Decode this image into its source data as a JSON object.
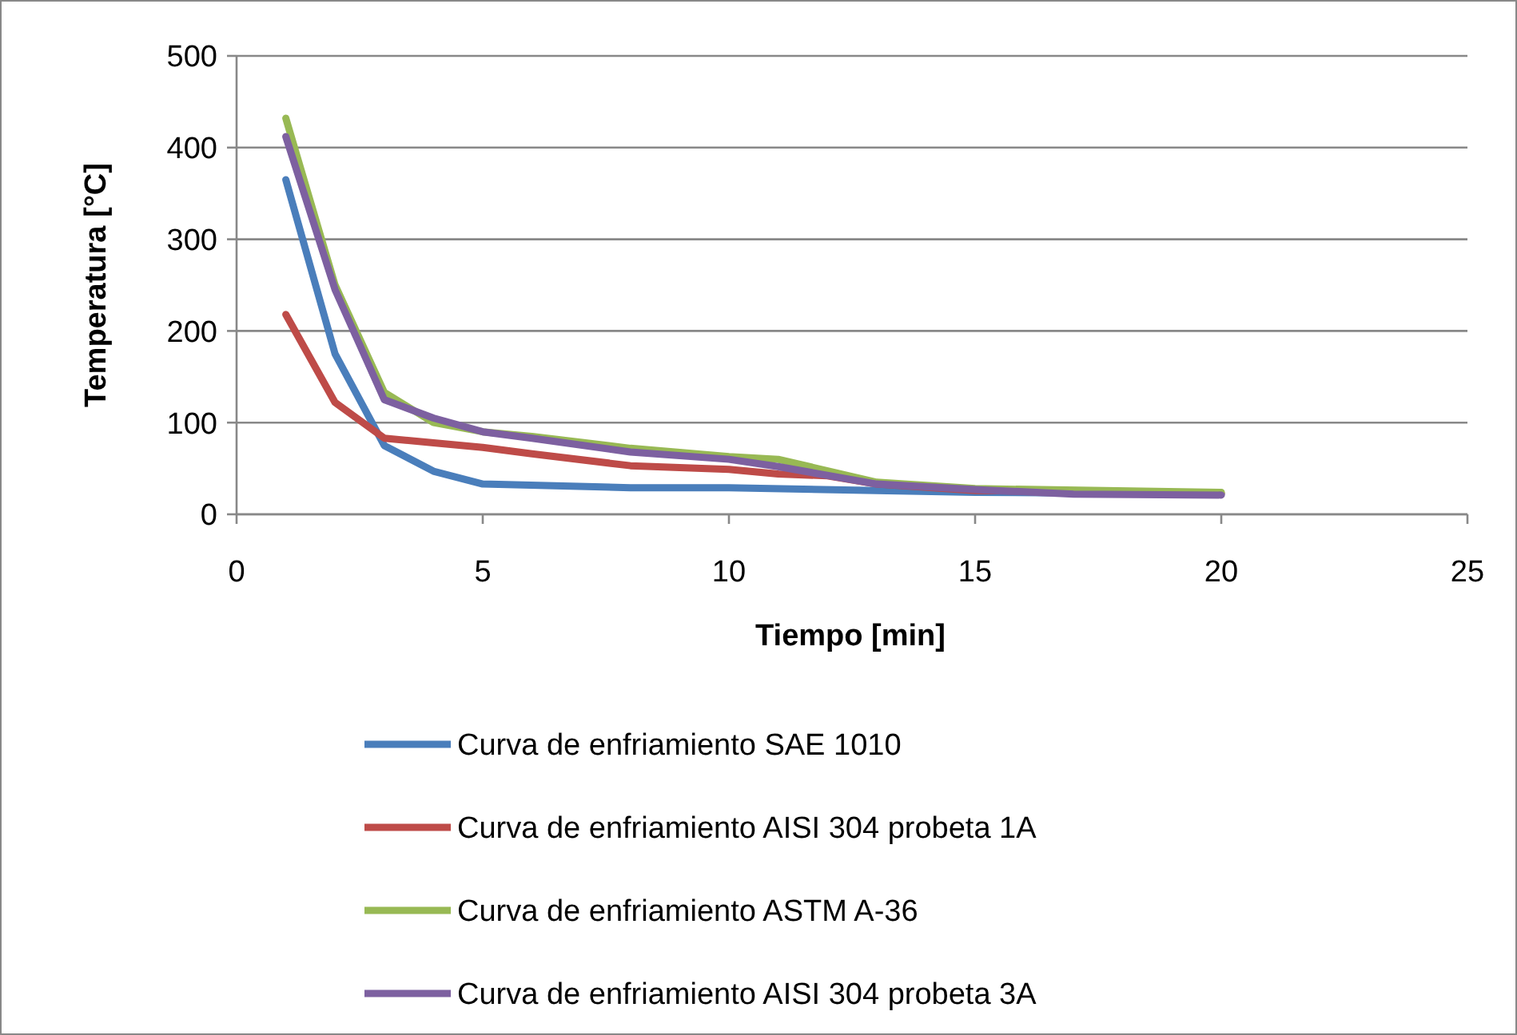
{
  "chart_data": {
    "type": "line",
    "xlabel": "Tiempo [min]",
    "ylabel": "Temperatura [°C]",
    "xlim": [
      0,
      25
    ],
    "xticks": [
      0,
      5,
      10,
      15,
      20,
      25
    ],
    "ylim": [
      0,
      500
    ],
    "yticks": [
      0,
      100,
      200,
      300,
      400,
      500
    ],
    "grid": "y",
    "legend": "bottom",
    "marker": "none",
    "line_style": "solid",
    "series": [
      {
        "name": "Curva de enfriamiento SAE 1010",
        "color": "#4a7ebb",
        "x": [
          1,
          2,
          3,
          4,
          5,
          8,
          10,
          13,
          15,
          20
        ],
        "values": [
          365,
          175,
          75,
          47,
          33,
          29,
          29,
          26,
          24,
          22
        ]
      },
      {
        "name": "Curva de enfriamiento AISI 304 probeta 1A",
        "color": "#be4b48",
        "x": [
          1,
          2,
          3,
          4,
          5,
          6,
          8,
          10,
          11,
          12,
          13,
          15,
          20
        ],
        "values": [
          218,
          122,
          83,
          78,
          73,
          66,
          53,
          49,
          44,
          42,
          33,
          26,
          23
        ]
      },
      {
        "name": "Curva de enfriamiento ASTM A-36",
        "color": "#98b954",
        "x": [
          1,
          2,
          3,
          4,
          5,
          6,
          8,
          10,
          11,
          13,
          15,
          20
        ],
        "values": [
          432,
          250,
          133,
          100,
          90,
          85,
          72,
          63,
          60,
          35,
          28,
          24
        ]
      },
      {
        "name": "Curva de enfriamiento AISI 304 probeta 3A",
        "color": "#7d60a0",
        "x": [
          1,
          2,
          3,
          4,
          5,
          6,
          8,
          10,
          11,
          13,
          15,
          17,
          20
        ],
        "values": [
          412,
          245,
          125,
          105,
          90,
          83,
          68,
          60,
          52,
          33,
          27,
          22,
          21
        ]
      }
    ]
  }
}
